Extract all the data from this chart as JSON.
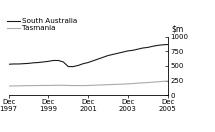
{
  "title": "",
  "ylim": [
    0,
    1000
  ],
  "yticks": [
    0,
    250,
    500,
    750,
    1000
  ],
  "ytick_labels": [
    "0",
    "250",
    "500",
    "750",
    "1000"
  ],
  "xtick_labels": [
    "Dec\n1997",
    "Dec\n1999",
    "Dec\n2001",
    "Dec\n2003",
    "Dec\n2005"
  ],
  "xtick_positions": [
    0,
    8,
    16,
    24,
    32
  ],
  "sa_color": "#1a1a1a",
  "tas_color": "#aaaaaa",
  "legend_sa": "South Australia",
  "legend_tas": "Tasmania",
  "sa_values": [
    530,
    535,
    535,
    540,
    545,
    555,
    560,
    570,
    580,
    595,
    595,
    570,
    490,
    490,
    510,
    540,
    560,
    590,
    620,
    650,
    680,
    700,
    720,
    740,
    760,
    770,
    790,
    810,
    820,
    840,
    855,
    865,
    870
  ],
  "tas_values": [
    155,
    157,
    158,
    160,
    162,
    163,
    164,
    165,
    165,
    167,
    168,
    168,
    165,
    163,
    163,
    163,
    165,
    168,
    172,
    175,
    178,
    182,
    185,
    188,
    192,
    198,
    205,
    210,
    215,
    222,
    228,
    235,
    240
  ],
  "background_color": "#ffffff",
  "n_points": 33
}
